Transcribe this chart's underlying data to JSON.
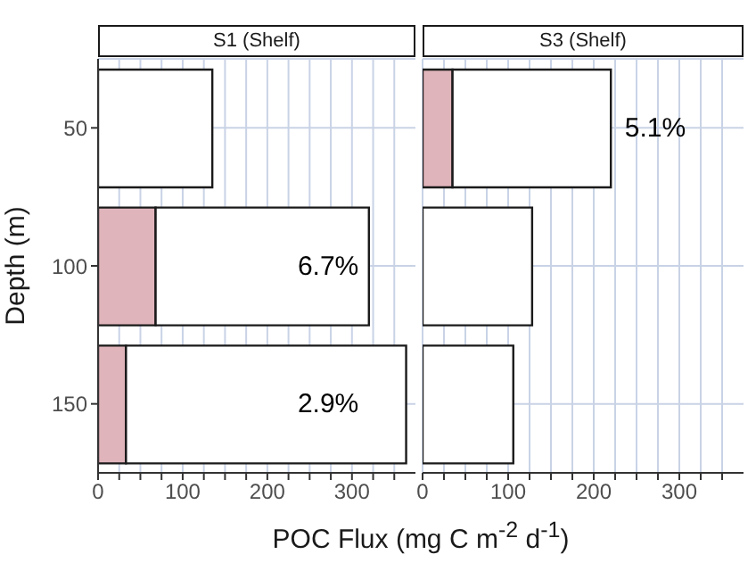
{
  "chart_data": [
    {
      "type": "bar",
      "orientation": "horizontal",
      "stacked": true,
      "title": "S1 (Shelf)",
      "ylabel": "Depth (m)",
      "xlabel": "POC Flux (mg C m$^{-2}$ d$^{-1}$)",
      "categories": [
        "50",
        "100",
        "150"
      ],
      "series": [
        {
          "color": "#e0b4bb",
          "values": [
            null,
            68,
            33
          ]
        },
        {
          "color": "#ffffff",
          "values": [
            135,
            252,
            331
          ]
        }
      ],
      "xlim": [
        0,
        375
      ],
      "xticks": [
        0,
        {
          "value": 25,
          "label": null
        },
        {
          "value": 50,
          "label": null
        },
        {
          "value": 75,
          "label": null
        },
        100,
        {
          "value": 125,
          "label": null
        },
        {
          "value": 150,
          "label": null
        },
        {
          "value": 175,
          "label": null
        },
        200,
        {
          "value": 225,
          "label": null
        },
        {
          "value": 250,
          "label": null
        },
        {
          "value": 275,
          "label": null
        },
        300,
        {
          "value": 325,
          "label": null
        },
        {
          "value": 350,
          "label": null
        }
      ],
      "grid": true,
      "annotations": [
        "6.7%",
        "2.9%"
      ]
    },
    {
      "type": "bar",
      "orientation": "horizontal",
      "stacked": true,
      "title": "S3 (Shelf)",
      "categories": [
        "50",
        "100",
        "150"
      ],
      "series": [
        {
          "color": "#e0b4bb",
          "values": [
            35,
            null,
            null
          ]
        },
        {
          "color": "#ffffff",
          "values": [
            185,
            128,
            106
          ]
        }
      ],
      "xlim": [
        0,
        375
      ],
      "xticks": [
        0,
        {
          "value": 25,
          "label": null
        },
        {
          "value": 50,
          "label": null
        },
        {
          "value": 75,
          "label": null
        },
        100,
        {
          "value": 125,
          "label": null
        },
        {
          "value": 150,
          "label": null
        },
        {
          "value": 175,
          "label": null
        },
        200,
        {
          "value": 225,
          "label": null
        },
        {
          "value": 250,
          "label": null
        },
        {
          "value": 275,
          "label": null
        },
        300,
        {
          "value": 325,
          "label": null
        },
        {
          "value": 350,
          "label": null
        }
      ],
      "grid": true,
      "tick_labels": "x",
      "annotations": [
        "5.1%"
      ]
    }
  ]
}
